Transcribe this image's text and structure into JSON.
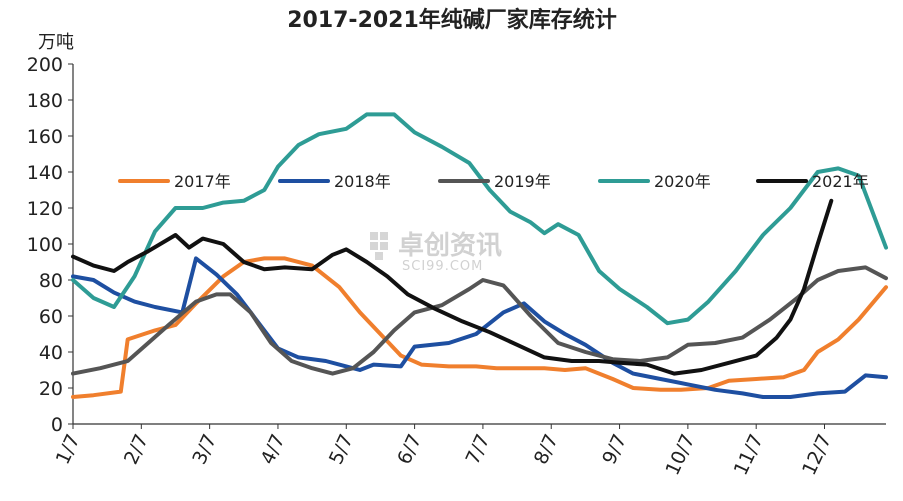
{
  "chart_data": {
    "type": "line",
    "title": "2017-2021年纯碱厂家库存统计",
    "unit": "万吨",
    "xlabel": "",
    "ylabel": "万吨",
    "ylim": [
      0,
      200
    ],
    "yticks": [
      0,
      20,
      40,
      60,
      80,
      100,
      120,
      140,
      160,
      180,
      200
    ],
    "xticks": [
      "1/7",
      "2/7",
      "3/7",
      "4/7",
      "5/7",
      "6/7",
      "7/7",
      "8/7",
      "9/7",
      "10/7",
      "11/7",
      "12/7"
    ],
    "x_range": [
      1,
      12.9
    ],
    "grid": false,
    "legend_position": "top",
    "watermark": {
      "text": "卓创资讯",
      "sub": "SCI99.COM"
    },
    "series": [
      {
        "name": "2017年",
        "color": "#F07F2D",
        "points": [
          [
            1.0,
            15
          ],
          [
            1.3,
            16
          ],
          [
            1.7,
            18
          ],
          [
            1.8,
            47
          ],
          [
            2.2,
            52
          ],
          [
            2.5,
            55
          ],
          [
            2.8,
            67
          ],
          [
            3.2,
            82
          ],
          [
            3.5,
            90
          ],
          [
            3.8,
            92
          ],
          [
            4.1,
            92
          ],
          [
            4.5,
            88
          ],
          [
            4.9,
            76
          ],
          [
            5.2,
            62
          ],
          [
            5.5,
            50
          ],
          [
            5.8,
            38
          ],
          [
            6.1,
            33
          ],
          [
            6.5,
            32
          ],
          [
            6.9,
            32
          ],
          [
            7.2,
            31
          ],
          [
            7.6,
            31
          ],
          [
            7.9,
            31
          ],
          [
            8.2,
            30
          ],
          [
            8.5,
            31
          ],
          [
            8.9,
            25
          ],
          [
            9.2,
            20
          ],
          [
            9.6,
            19
          ],
          [
            9.9,
            19
          ],
          [
            10.3,
            20
          ],
          [
            10.6,
            24
          ],
          [
            11.0,
            25
          ],
          [
            11.4,
            26
          ],
          [
            11.7,
            30
          ],
          [
            11.9,
            40
          ],
          [
            12.2,
            47
          ],
          [
            12.5,
            58
          ],
          [
            12.9,
            76
          ]
        ]
      },
      {
        "name": "2018年",
        "color": "#1E4FA1",
        "points": [
          [
            1.0,
            82
          ],
          [
            1.3,
            80
          ],
          [
            1.6,
            73
          ],
          [
            1.9,
            68
          ],
          [
            2.2,
            65
          ],
          [
            2.6,
            62
          ],
          [
            2.8,
            92
          ],
          [
            3.1,
            83
          ],
          [
            3.4,
            72
          ],
          [
            3.7,
            57
          ],
          [
            4.0,
            42
          ],
          [
            4.3,
            37
          ],
          [
            4.7,
            35
          ],
          [
            5.0,
            32
          ],
          [
            5.2,
            30
          ],
          [
            5.4,
            33
          ],
          [
            5.8,
            32
          ],
          [
            6.0,
            43
          ],
          [
            6.5,
            45
          ],
          [
            6.9,
            50
          ],
          [
            7.3,
            62
          ],
          [
            7.6,
            67
          ],
          [
            7.9,
            57
          ],
          [
            8.2,
            50
          ],
          [
            8.5,
            44
          ],
          [
            8.9,
            34
          ],
          [
            9.2,
            28
          ],
          [
            9.6,
            25
          ],
          [
            10.0,
            22
          ],
          [
            10.4,
            19
          ],
          [
            10.8,
            17
          ],
          [
            11.1,
            15
          ],
          [
            11.5,
            15
          ],
          [
            11.9,
            17
          ],
          [
            12.3,
            18
          ],
          [
            12.6,
            27
          ],
          [
            12.9,
            26
          ]
        ]
      },
      {
        "name": "2019年",
        "color": "#555555",
        "points": [
          [
            1.0,
            28
          ],
          [
            1.4,
            31
          ],
          [
            1.8,
            35
          ],
          [
            2.1,
            45
          ],
          [
            2.4,
            55
          ],
          [
            2.8,
            68
          ],
          [
            3.1,
            72
          ],
          [
            3.3,
            72
          ],
          [
            3.6,
            62
          ],
          [
            3.9,
            45
          ],
          [
            4.2,
            35
          ],
          [
            4.5,
            31
          ],
          [
            4.8,
            28
          ],
          [
            5.1,
            31
          ],
          [
            5.4,
            40
          ],
          [
            5.7,
            52
          ],
          [
            6.0,
            62
          ],
          [
            6.4,
            66
          ],
          [
            6.8,
            75
          ],
          [
            7.0,
            80
          ],
          [
            7.3,
            77
          ],
          [
            7.7,
            60
          ],
          [
            8.1,
            45
          ],
          [
            8.5,
            40
          ],
          [
            8.9,
            36
          ],
          [
            9.3,
            35
          ],
          [
            9.7,
            37
          ],
          [
            10.0,
            44
          ],
          [
            10.4,
            45
          ],
          [
            10.8,
            48
          ],
          [
            11.2,
            58
          ],
          [
            11.6,
            70
          ],
          [
            11.9,
            80
          ],
          [
            12.2,
            85
          ],
          [
            12.6,
            87
          ],
          [
            12.9,
            81
          ]
        ]
      },
      {
        "name": "2020年",
        "color": "#2E9C95",
        "points": [
          [
            1.0,
            80
          ],
          [
            1.3,
            70
          ],
          [
            1.6,
            65
          ],
          [
            1.9,
            82
          ],
          [
            2.2,
            107
          ],
          [
            2.5,
            120
          ],
          [
            2.9,
            120
          ],
          [
            3.2,
            123
          ],
          [
            3.5,
            124
          ],
          [
            3.8,
            130
          ],
          [
            4.0,
            143
          ],
          [
            4.3,
            155
          ],
          [
            4.6,
            161
          ],
          [
            5.0,
            164
          ],
          [
            5.3,
            172
          ],
          [
            5.7,
            172
          ],
          [
            6.0,
            162
          ],
          [
            6.4,
            154
          ],
          [
            6.8,
            145
          ],
          [
            7.1,
            130
          ],
          [
            7.4,
            118
          ],
          [
            7.7,
            112
          ],
          [
            7.9,
            106
          ],
          [
            8.1,
            111
          ],
          [
            8.4,
            105
          ],
          [
            8.7,
            85
          ],
          [
            9.0,
            75
          ],
          [
            9.4,
            65
          ],
          [
            9.7,
            56
          ],
          [
            10.0,
            58
          ],
          [
            10.3,
            68
          ],
          [
            10.7,
            85
          ],
          [
            11.1,
            105
          ],
          [
            11.5,
            120
          ],
          [
            11.9,
            140
          ],
          [
            12.2,
            142
          ],
          [
            12.5,
            138
          ],
          [
            12.9,
            98
          ]
        ]
      },
      {
        "name": "2021年",
        "color": "#111111",
        "points": [
          [
            1.0,
            93
          ],
          [
            1.3,
            88
          ],
          [
            1.6,
            85
          ],
          [
            1.8,
            90
          ],
          [
            2.1,
            96
          ],
          [
            2.5,
            105
          ],
          [
            2.7,
            98
          ],
          [
            2.9,
            103
          ],
          [
            3.2,
            100
          ],
          [
            3.5,
            90
          ],
          [
            3.8,
            86
          ],
          [
            4.1,
            87
          ],
          [
            4.5,
            86
          ],
          [
            4.8,
            94
          ],
          [
            5.0,
            97
          ],
          [
            5.3,
            90
          ],
          [
            5.6,
            82
          ],
          [
            5.9,
            72
          ],
          [
            6.3,
            64
          ],
          [
            6.7,
            57
          ],
          [
            7.1,
            51
          ],
          [
            7.5,
            44
          ],
          [
            7.9,
            37
          ],
          [
            8.3,
            35
          ],
          [
            8.7,
            35
          ],
          [
            9.0,
            34
          ],
          [
            9.4,
            33
          ],
          [
            9.8,
            28
          ],
          [
            10.2,
            30
          ],
          [
            10.6,
            34
          ],
          [
            11.0,
            38
          ],
          [
            11.3,
            48
          ],
          [
            11.5,
            58
          ],
          [
            11.7,
            75
          ],
          [
            11.9,
            100
          ],
          [
            12.1,
            124
          ]
        ]
      }
    ]
  }
}
